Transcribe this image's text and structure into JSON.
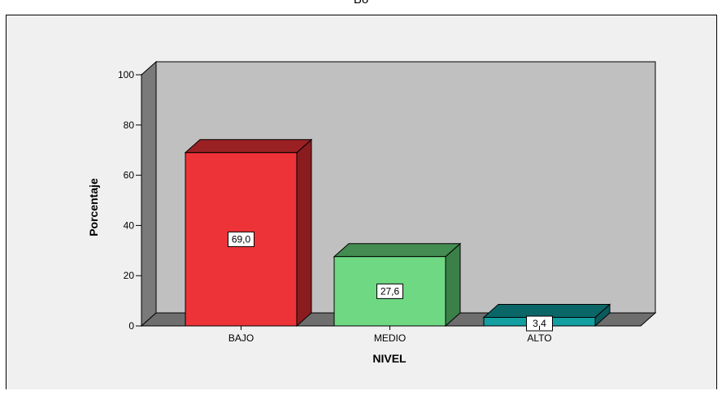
{
  "header": {
    "top_label": "Bo"
  },
  "chart_data": {
    "type": "bar",
    "style": "3d",
    "categories": [
      "BAJO",
      "MEDIO",
      "ALTO"
    ],
    "values": [
      69.0,
      27.6,
      3.4
    ],
    "data_labels": [
      "69,0",
      "27,6",
      "3,4"
    ],
    "xlabel": "NIVEL",
    "ylabel": "Porcentaje",
    "ylim": [
      0,
      100
    ],
    "yticks": [
      0,
      20,
      40,
      60,
      80,
      100
    ],
    "grid": false,
    "legend": "none",
    "colors": {
      "front": [
        "#ee3338",
        "#6fd883",
        "#139ea2"
      ],
      "side": [
        "#8a1c20",
        "#3a8048",
        "#0a5a5c"
      ],
      "top": [
        "#9b2024",
        "#438c52",
        "#0b6668"
      ],
      "wall": "#c0c0c0",
      "floor": "#6e6e6e",
      "side_wall": "#7a7a7a"
    }
  }
}
